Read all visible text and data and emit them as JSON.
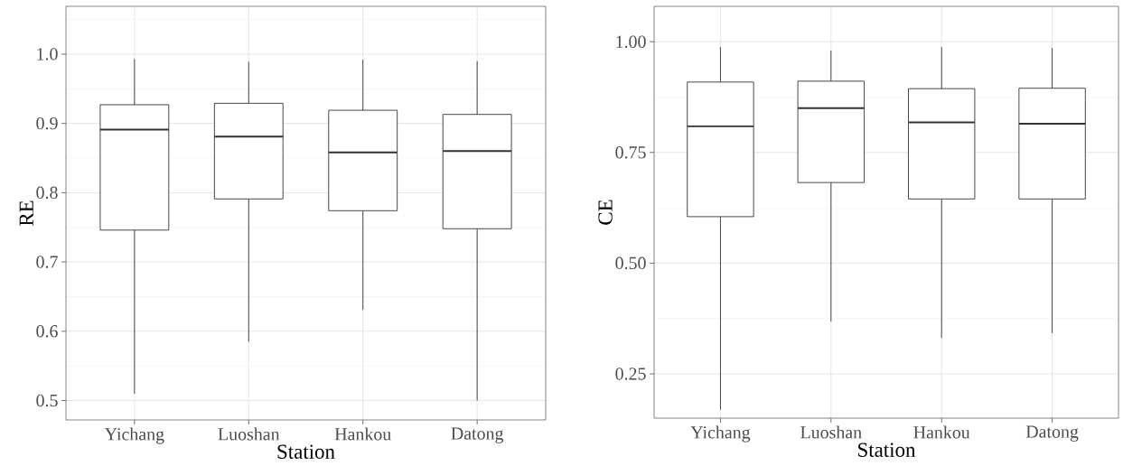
{
  "chart_data": [
    {
      "type": "box",
      "xlabel": "Station",
      "ylabel": "RE",
      "categories": [
        "Yichang",
        "Luoshan",
        "Hankou",
        "Datong"
      ],
      "ylim": [
        0.472,
        1.069
      ],
      "yticks": [
        {
          "value": 0.5,
          "label": "0.5"
        },
        {
          "value": 0.6,
          "label": "0.6"
        },
        {
          "value": 0.7,
          "label": "0.7"
        },
        {
          "value": 0.8,
          "label": "0.8"
        },
        {
          "value": 0.9,
          "label": "0.9"
        },
        {
          "value": 1.0,
          "label": "1.0"
        }
      ],
      "grid": true,
      "series": [
        {
          "color": "#333333",
          "boxes": [
            {
              "low": 0.51,
              "q1": 0.746,
              "median": 0.891,
              "q3": 0.927,
              "high": 0.993
            },
            {
              "low": 0.585,
              "q1": 0.791,
              "median": 0.881,
              "q3": 0.929,
              "high": 0.989
            },
            {
              "low": 0.631,
              "q1": 0.774,
              "median": 0.858,
              "q3": 0.919,
              "high": 0.992
            },
            {
              "low": 0.5,
              "q1": 0.748,
              "median": 0.86,
              "q3": 0.913,
              "high": 0.99
            }
          ]
        }
      ]
    },
    {
      "type": "box",
      "xlabel": "Station",
      "ylabel": "CE",
      "categories": [
        "Yichang",
        "Luoshan",
        "Hankou",
        "Datong"
      ],
      "ylim": [
        0.15,
        1.08
      ],
      "yticks": [
        {
          "value": 0.25,
          "label": "0.25"
        },
        {
          "value": 0.5,
          "label": "0.50"
        },
        {
          "value": 0.75,
          "label": "0.75"
        },
        {
          "value": 1.0,
          "label": "1.00"
        }
      ],
      "grid": true,
      "series": [
        {
          "color": "#333333",
          "boxes": [
            {
              "low": 0.169,
              "q1": 0.605,
              "median": 0.809,
              "q3": 0.909,
              "high": 0.988
            },
            {
              "low": 0.368,
              "q1": 0.682,
              "median": 0.85,
              "q3": 0.911,
              "high": 0.98
            },
            {
              "low": 0.331,
              "q1": 0.645,
              "median": 0.818,
              "q3": 0.894,
              "high": 0.988
            },
            {
              "low": 0.342,
              "q1": 0.645,
              "median": 0.815,
              "q3": 0.895,
              "high": 0.986
            }
          ]
        }
      ]
    }
  ]
}
